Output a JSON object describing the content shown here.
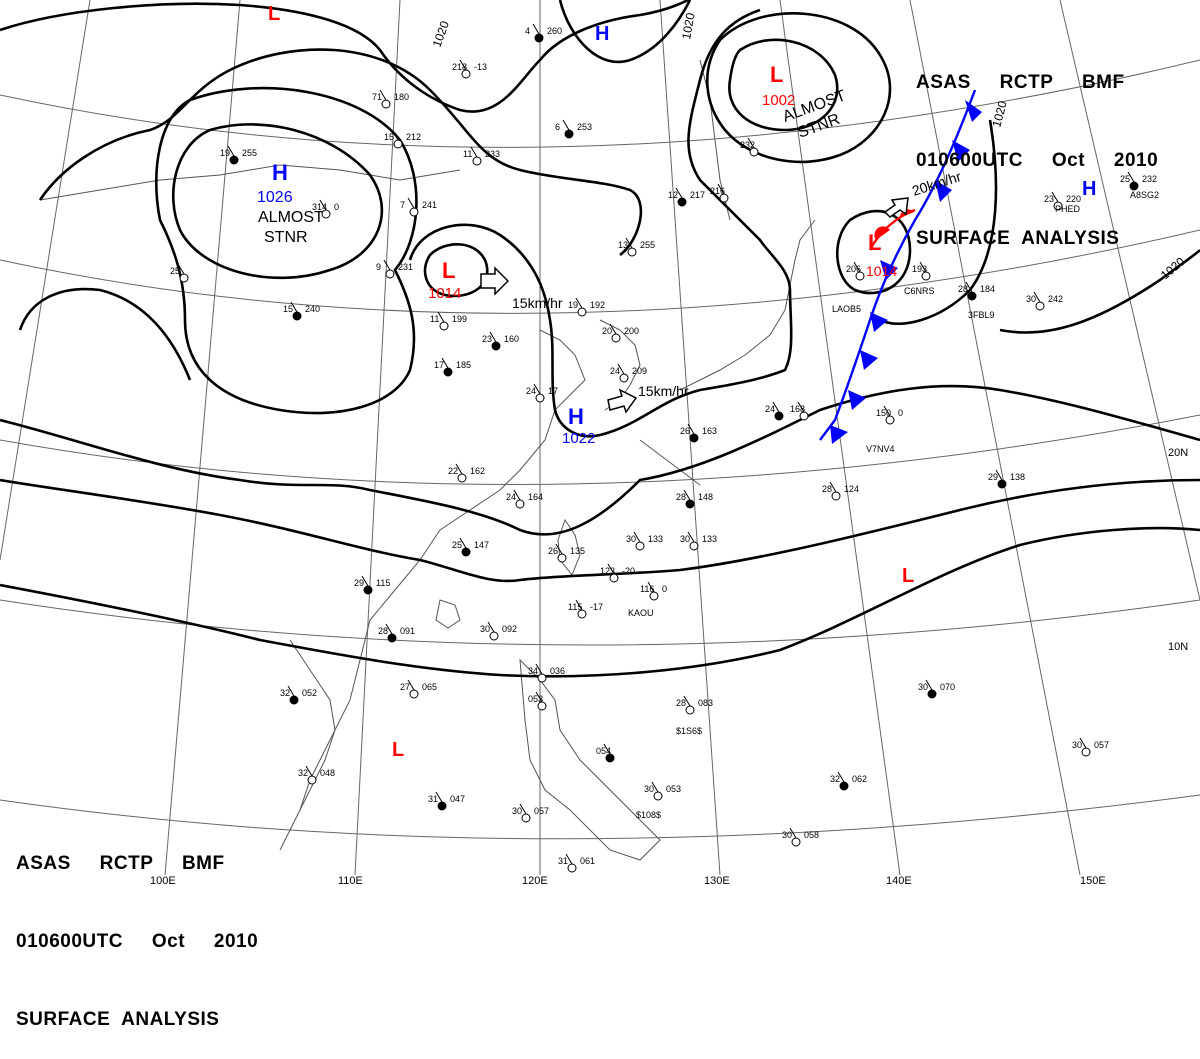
{
  "header_top": {
    "line1": "ASAS     RCTP     BMF",
    "line2": "010600UTC     Oct     2010",
    "line3": "SURFACE  ANALYSIS"
  },
  "header_bottom": {
    "line1": "ASAS     RCTP     BMF",
    "line2": "010600UTC     Oct     2010",
    "line3": "SURFACE  ANALYSIS"
  },
  "isobar_labels": {
    "i1": "1020",
    "i2": "1020",
    "i3": "1020",
    "i4": "1020"
  },
  "pressure_centers": {
    "h1": {
      "letter": "H",
      "value": "1026",
      "note1": "ALMOST",
      "note2": "STNR"
    },
    "l1": {
      "letter": "L",
      "value": "1014"
    },
    "l2": {
      "letter": "L",
      "value": "1002",
      "note1": "ALMOST",
      "note2": "STNR"
    },
    "h2": {
      "letter": "H",
      "value": "1022"
    },
    "l3": {
      "letter": "L",
      "value": "1014"
    },
    "h_top": {
      "letter": "H"
    },
    "h_east": {
      "letter": "H"
    },
    "l_top": {
      "letter": "L"
    },
    "l_pac": {
      "letter": "L"
    },
    "l_sea": {
      "letter": "L"
    }
  },
  "motion_labels": {
    "m1": "15km/hr",
    "m2": "15km/hr",
    "m3": "20km/hr"
  },
  "lon_labels": {
    "e100": "100E",
    "e110": "110E",
    "e120": "120E",
    "e130": "130E",
    "e140": "140E",
    "e150": "150E"
  },
  "lat_labels": {
    "n20": "20N",
    "n10": "10N"
  },
  "stations": [
    {
      "temp": "4",
      "pres": "260"
    },
    {
      "temp": "218",
      "pres": "-13"
    },
    {
      "temp": "71",
      "pres": "180"
    },
    {
      "temp": "6",
      "pres": "253"
    },
    {
      "temp": "11",
      "pres": "233"
    },
    {
      "temp": "15",
      "pres": "212"
    },
    {
      "temp": "19",
      "pres": "255"
    },
    {
      "temp": "314",
      "pres": "0"
    },
    {
      "temp": "7",
      "pres": "241"
    },
    {
      "temp": "12",
      "pres": "217"
    },
    {
      "temp": "13",
      "pres": "255"
    },
    {
      "temp": "9",
      "pres": "231"
    },
    {
      "temp": "15",
      "pres": "240"
    },
    {
      "temp": "25",
      "pres": ""
    },
    {
      "temp": "11",
      "pres": "199"
    },
    {
      "temp": "23",
      "pres": "160"
    },
    {
      "temp": "19",
      "pres": "192"
    },
    {
      "temp": "20",
      "pres": "200"
    },
    {
      "temp": "17",
      "pres": "185"
    },
    {
      "temp": "24",
      "pres": "209"
    },
    {
      "temp": "24",
      "pres": "17"
    },
    {
      "temp": "26",
      "pres": "163"
    },
    {
      "temp": "22",
      "pres": "162"
    },
    {
      "temp": "24",
      "pres": "164"
    },
    {
      "temp": "28",
      "pres": "148"
    },
    {
      "temp": "30",
      "pres": "133"
    },
    {
      "temp": "30",
      "pres": "133"
    },
    {
      "temp": "25",
      "pres": "147"
    },
    {
      "temp": "26",
      "pres": "135"
    },
    {
      "temp": "123",
      "pres": "-20"
    },
    {
      "temp": "29",
      "pres": "115"
    },
    {
      "temp": "115",
      "pres": "-17"
    },
    {
      "temp": "116",
      "pres": "0"
    },
    {
      "temp": "28",
      "pres": "091"
    },
    {
      "temp": "30",
      "pres": "092"
    },
    {
      "temp": "27",
      "pres": "065"
    },
    {
      "temp": "32",
      "pres": "052"
    },
    {
      "temp": "34",
      "pres": "036"
    },
    {
      "temp": "053",
      "pres": ""
    },
    {
      "temp": "054",
      "pres": ""
    },
    {
      "temp": "28",
      "pres": "083"
    },
    {
      "temp": "32",
      "pres": "048"
    },
    {
      "temp": "31",
      "pres": "047"
    },
    {
      "temp": "30",
      "pres": "057"
    },
    {
      "temp": "30",
      "pres": "053"
    },
    {
      "temp": "32",
      "pres": "062"
    },
    {
      "temp": "30",
      "pres": "058"
    },
    {
      "temp": "31",
      "pres": "061"
    },
    {
      "temp": "30",
      "pres": "070"
    },
    {
      "temp": "30",
      "pres": "057"
    },
    {
      "temp": "28",
      "pres": "124"
    },
    {
      "temp": "29",
      "pres": "138"
    },
    {
      "temp": "150",
      "pres": "0"
    },
    {
      "temp": "168",
      "pres": ""
    },
    {
      "temp": "24",
      "pres": ""
    },
    {
      "temp": "206",
      "pres": ""
    },
    {
      "temp": "193",
      "pres": ""
    },
    {
      "temp": "28",
      "pres": "184"
    },
    {
      "temp": "30",
      "pres": "242"
    },
    {
      "temp": "23",
      "pres": "220"
    },
    {
      "temp": "25",
      "pres": "232"
    },
    {
      "temp": "216",
      "pres": ""
    },
    {
      "temp": "232",
      "pres": ""
    }
  ],
  "station_ids": {
    "s1": "PHED",
    "s2": "A8SG2",
    "s3": "C6NRS",
    "s4": "LAOB5",
    "s5": "V7NV4",
    "s6": "KAOU",
    "s7": "$1S6$",
    "s8": "$108$",
    "s9": "3FBL9"
  },
  "colors": {
    "high": "#0000ff",
    "low": "#ff0000",
    "cold_front": "#0000ff",
    "warm_front": "#ff0000",
    "coast": "#555555",
    "grid": "#666666",
    "isobar": "#000000"
  }
}
